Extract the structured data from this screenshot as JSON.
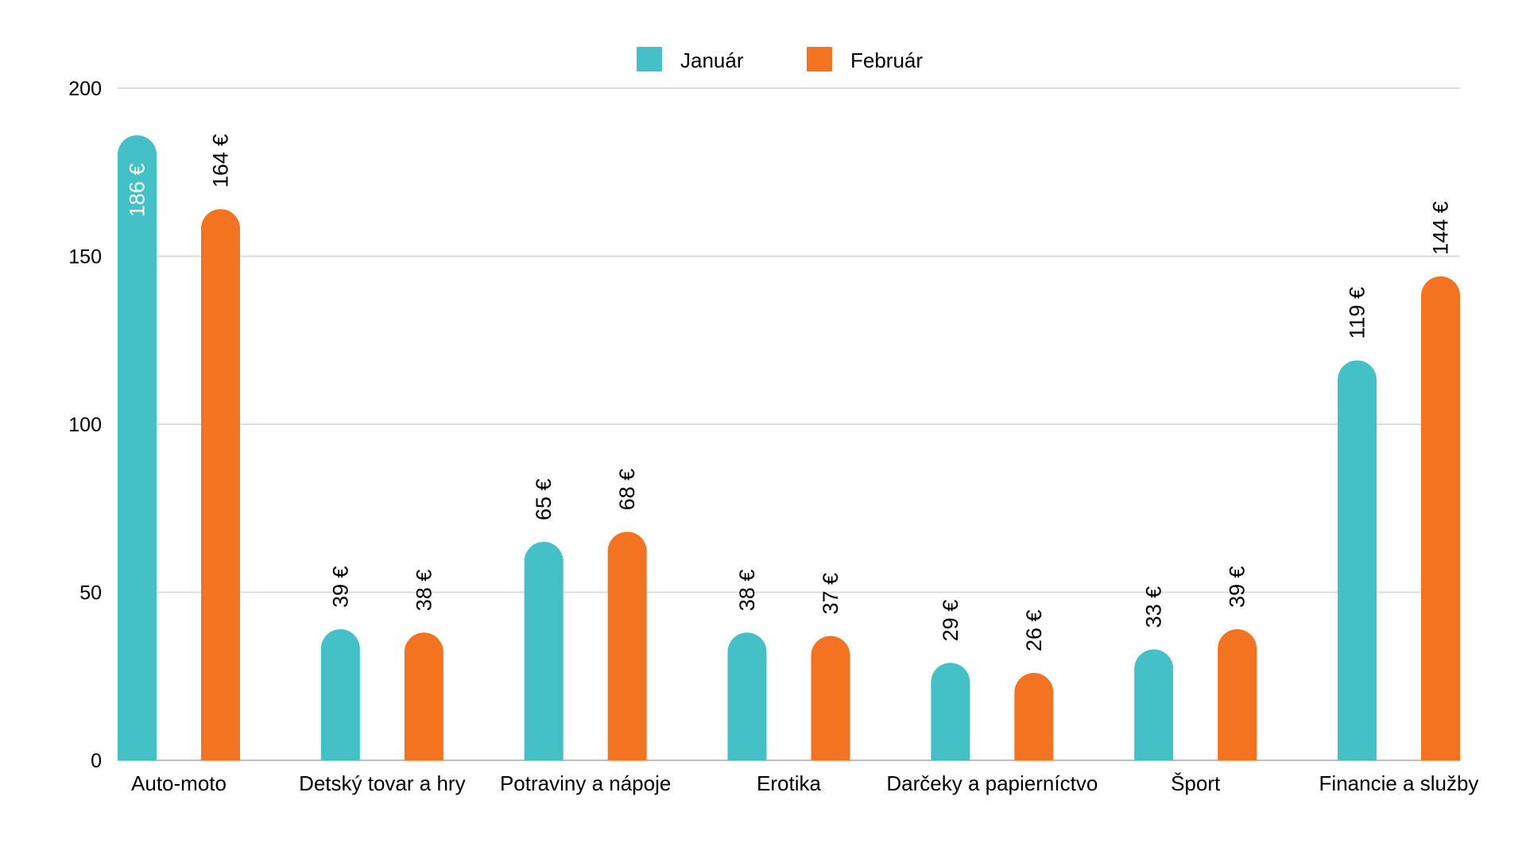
{
  "chart_data": {
    "type": "bar",
    "title": "",
    "xlabel": "",
    "ylabel": "",
    "ylim": [
      0,
      200
    ],
    "yticks": [
      "0",
      "50",
      "100",
      "150",
      "200"
    ],
    "grid": true,
    "legend_position": "top-center",
    "categories": [
      "Auto-moto",
      "Detský tovar a hry",
      "Potraviny a nápoje",
      "Erotika",
      "Darčeky a papierníctvo",
      "Šport",
      "Financie a služby"
    ],
    "series": [
      {
        "name": "Január",
        "color": "#43c1c6",
        "values": [
          186,
          39,
          65,
          38,
          29,
          33,
          119
        ],
        "labels": [
          "186 €",
          "39 €",
          "65 €",
          "38 €",
          "29 €",
          "33 €",
          "119 €"
        ]
      },
      {
        "name": "Február",
        "color": "#f37321",
        "values": [
          164,
          38,
          68,
          37,
          26,
          39,
          144
        ],
        "labels": [
          "164 €",
          "38 €",
          "68 €",
          "37 €",
          "26 €",
          "39 €",
          "144 €"
        ]
      }
    ]
  }
}
